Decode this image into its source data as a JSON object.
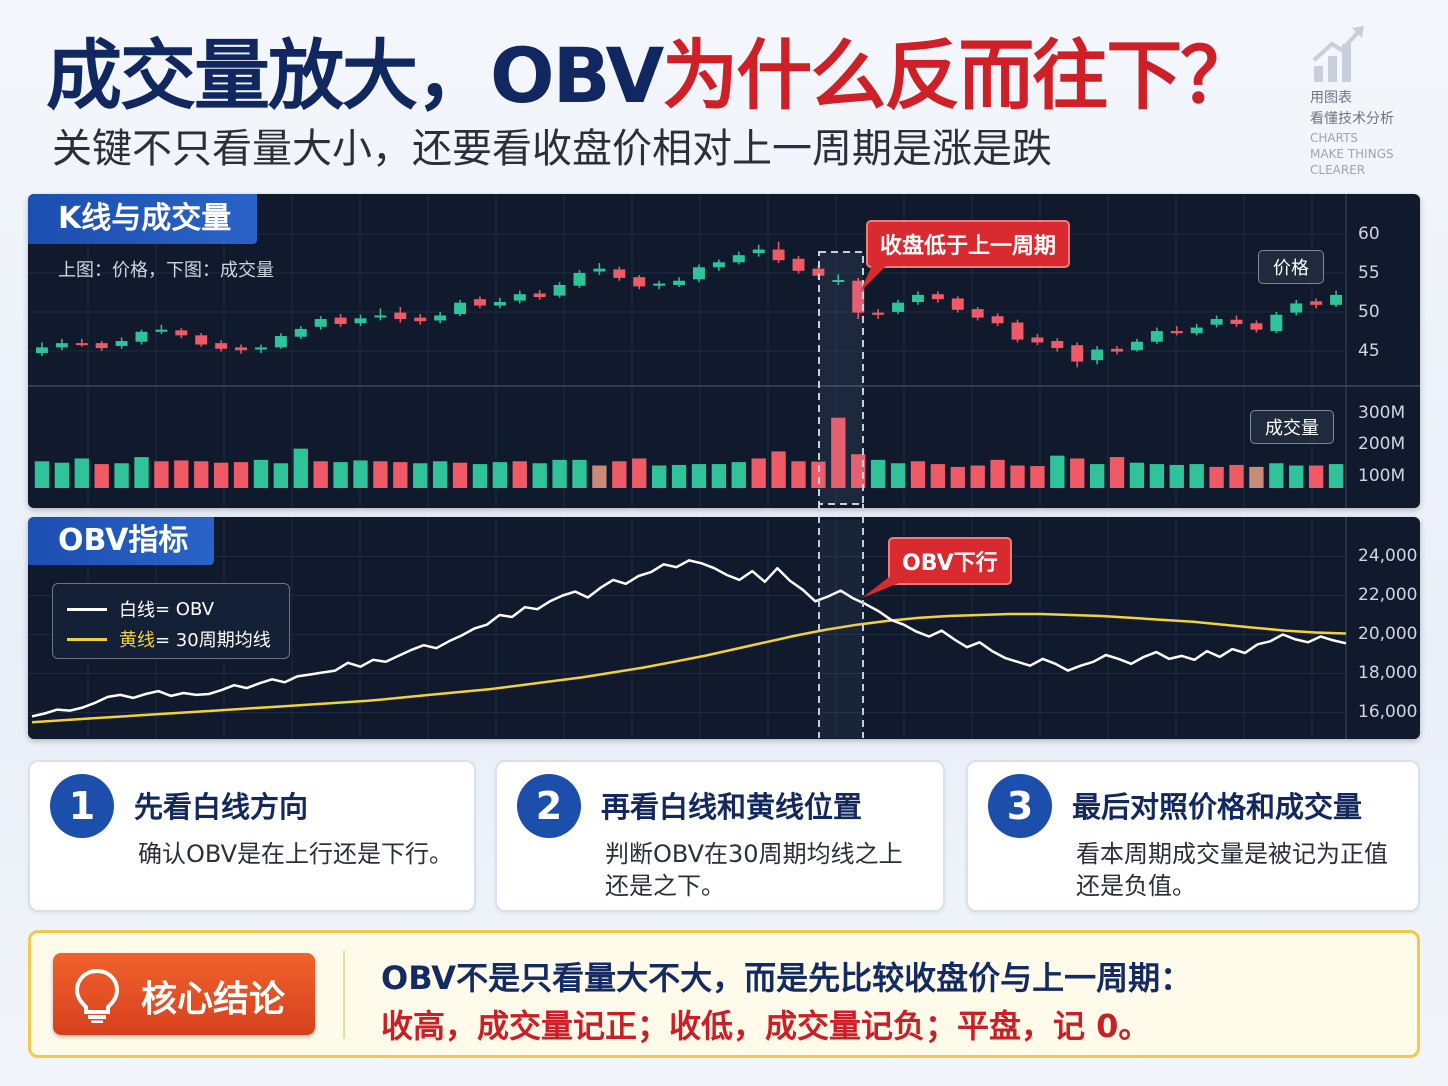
{
  "header": {
    "title_part1": "成交量放大，OBV",
    "title_part2": "为什么反而往下？",
    "subtitle": "关键不只看量大小，还要看收盘价相对上一周期是涨是跌"
  },
  "brand": {
    "line1": "用图表",
    "line2": "看懂技术分析",
    "line3": "CHARTS",
    "line4": "MAKE THINGS",
    "line5": "CLEARER",
    "icon": "bar-chart-arrow-icon"
  },
  "colors": {
    "navy": "#10275f",
    "red": "#cf1f27",
    "panel_bg": "#101a2c",
    "up": "#2fc39a",
    "down": "#ef5a66",
    "neutral": "#c98a7a",
    "obv_line": "#ffffff",
    "ma_line": "#f2d23a"
  },
  "kline_panel": {
    "tag": "K线与成交量",
    "note": "上图：价格，下图：成交量",
    "price_chip": "价格",
    "volume_chip": "成交量",
    "callout": "收盘低于上一周期"
  },
  "obv_panel": {
    "tag": "OBV指标",
    "callout": "OBV下行",
    "legend": [
      {
        "swatch": "白线",
        "text": " = OBV"
      },
      {
        "swatch": "黄线",
        "text": " = 30周期均线"
      }
    ]
  },
  "chart_data": [
    {
      "type": "candlestick",
      "title": "K线与成交量",
      "ylim": [
        40,
        62
      ],
      "y_ticks": [
        "60",
        "55",
        "50",
        "45"
      ],
      "y_tick_values": [
        60,
        55,
        50,
        45
      ],
      "candles": [
        [
          43.8,
          44.6,
          45.3,
          43.4
        ],
        [
          44.6,
          45.2,
          45.8,
          44.2
        ],
        [
          45.2,
          45.0,
          45.8,
          44.7
        ],
        [
          45.2,
          44.5,
          45.5,
          44.1
        ],
        [
          44.8,
          45.5,
          46.0,
          44.4
        ],
        [
          45.4,
          46.8,
          47.1,
          45.0
        ],
        [
          46.8,
          47.1,
          47.8,
          46.5
        ],
        [
          47.0,
          46.3,
          47.3,
          45.9
        ],
        [
          46.3,
          45.0,
          46.6,
          44.7
        ],
        [
          45.2,
          44.4,
          45.6,
          44.0
        ],
        [
          44.6,
          44.2,
          45.0,
          43.7
        ],
        [
          44.3,
          44.6,
          45.0,
          43.8
        ],
        [
          44.6,
          46.2,
          46.6,
          44.4
        ],
        [
          46.1,
          47.2,
          47.6,
          45.8
        ],
        [
          47.5,
          48.6,
          49.0,
          47.1
        ],
        [
          48.8,
          47.9,
          49.3,
          47.5
        ],
        [
          48.0,
          48.7,
          49.2,
          47.6
        ],
        [
          48.9,
          49.1,
          50.1,
          48.4
        ],
        [
          49.5,
          48.6,
          50.3,
          48.1
        ],
        [
          48.8,
          48.3,
          49.3,
          47.8
        ],
        [
          48.4,
          49.1,
          49.6,
          48.0
        ],
        [
          49.3,
          50.9,
          51.3,
          49.0
        ],
        [
          51.4,
          50.5,
          51.8,
          50.1
        ],
        [
          50.5,
          51.0,
          51.6,
          50.1
        ],
        [
          51.2,
          52.1,
          52.6,
          50.8
        ],
        [
          52.2,
          51.7,
          52.7,
          51.3
        ],
        [
          51.9,
          53.4,
          53.8,
          51.6
        ],
        [
          53.3,
          55.1,
          55.5,
          53.0
        ],
        [
          55.3,
          55.7,
          56.5,
          54.8
        ],
        [
          55.6,
          54.4,
          56.0,
          54.0
        ],
        [
          54.5,
          53.2,
          54.8,
          52.8
        ],
        [
          53.3,
          53.6,
          54.0,
          52.8
        ],
        [
          53.4,
          54.0,
          54.5,
          53.1
        ],
        [
          54.2,
          55.9,
          56.3,
          53.8
        ],
        [
          55.9,
          56.6,
          57.0,
          55.4
        ],
        [
          56.6,
          57.6,
          58.1,
          56.3
        ],
        [
          57.9,
          58.4,
          59.1,
          57.4
        ],
        [
          58.4,
          56.9,
          59.5,
          56.5
        ],
        [
          57.1,
          55.4,
          57.5,
          55.0
        ],
        [
          55.7,
          54.7,
          56.2,
          54.2
        ],
        [
          54.1,
          54.1,
          54.9,
          53.4
        ],
        [
          54.0,
          49.5,
          54.4,
          48.6
        ],
        [
          49.5,
          49.2,
          50.0,
          48.6
        ],
        [
          49.6,
          50.9,
          51.3,
          49.3
        ],
        [
          51.0,
          52.0,
          52.5,
          50.6
        ],
        [
          52.1,
          51.4,
          52.5,
          50.9
        ],
        [
          51.5,
          49.9,
          51.8,
          49.5
        ],
        [
          50.0,
          48.8,
          50.3,
          48.4
        ],
        [
          49.0,
          48.0,
          49.4,
          47.6
        ],
        [
          48.1,
          45.7,
          48.5,
          45.3
        ],
        [
          46.0,
          45.3,
          46.5,
          44.9
        ],
        [
          45.5,
          44.5,
          45.9,
          44.0
        ],
        [
          44.9,
          42.6,
          45.3,
          41.8
        ],
        [
          42.8,
          44.3,
          44.8,
          42.2
        ],
        [
          44.4,
          44.0,
          44.8,
          43.6
        ],
        [
          44.2,
          45.4,
          45.8,
          44.0
        ],
        [
          45.4,
          46.9,
          47.4,
          45.1
        ],
        [
          46.9,
          46.6,
          47.6,
          46.3
        ],
        [
          46.6,
          47.4,
          47.9,
          46.3
        ],
        [
          47.8,
          48.6,
          49.1,
          47.4
        ],
        [
          48.5,
          47.9,
          49.1,
          47.5
        ],
        [
          48.0,
          47.1,
          48.4,
          46.7
        ],
        [
          46.9,
          49.2,
          49.6,
          46.6
        ],
        [
          49.5,
          50.8,
          51.3,
          49.1
        ],
        [
          51.1,
          50.6,
          51.5,
          50.1
        ],
        [
          50.6,
          52.0,
          52.6,
          50.3
        ]
      ]
    },
    {
      "type": "bar",
      "title": "成交量",
      "ylim": [
        0,
        320
      ],
      "y_ticks": [
        "300M",
        "200M",
        "100M"
      ],
      "y_tick_values": [
        300,
        200,
        100
      ],
      "values": [
        95,
        90,
        105,
        85,
        88,
        110,
        95,
        98,
        95,
        90,
        92,
        100,
        88,
        140,
        95,
        92,
        98,
        95,
        92,
        88,
        95,
        90,
        85,
        92,
        95,
        88,
        100,
        100,
        80,
        95,
        105,
        80,
        82,
        85,
        85,
        92,
        105,
        130,
        95,
        94,
        250,
        120,
        100,
        88,
        95,
        85,
        75,
        80,
        100,
        80,
        78,
        115,
        105,
        85,
        110,
        90,
        85,
        82,
        85,
        75,
        82,
        75,
        88,
        80,
        80,
        85
      ],
      "direction": [
        "up",
        "up",
        "up",
        "down",
        "up",
        "up",
        "down",
        "down",
        "down",
        "down",
        "down",
        "up",
        "up",
        "up",
        "down",
        "up",
        "up",
        "down",
        "down",
        "up",
        "up",
        "down",
        "up",
        "up",
        "down",
        "up",
        "up",
        "up",
        "neutral",
        "down",
        "down",
        "up",
        "up",
        "up",
        "up",
        "up",
        "down",
        "down",
        "down",
        "down",
        "down",
        "down",
        "up",
        "up",
        "down",
        "down",
        "down",
        "down",
        "down",
        "down",
        "down",
        "up",
        "down",
        "up",
        "down",
        "up",
        "up",
        "up",
        "up",
        "down",
        "down",
        "neutral",
        "up",
        "up",
        "down",
        "up"
      ]
    },
    {
      "type": "line",
      "title": "OBV指标",
      "ylim": [
        15000,
        25000
      ],
      "y_ticks": [
        "24,000",
        "22,000",
        "20,000",
        "18,000",
        "16,000"
      ],
      "y_tick_values": [
        24000,
        22000,
        20000,
        18000,
        16000
      ],
      "series": [
        {
          "name": "白线 = OBV",
          "values": [
            15800,
            15950,
            16150,
            16100,
            16250,
            16500,
            16800,
            16900,
            16750,
            16950,
            17100,
            16850,
            17000,
            16900,
            16950,
            17150,
            17400,
            17250,
            17500,
            17700,
            17550,
            17850,
            17950,
            18050,
            18150,
            18550,
            18350,
            18700,
            18600,
            18900,
            19200,
            19450,
            19300,
            19650,
            19950,
            20300,
            20500,
            21000,
            20900,
            21400,
            21300,
            21700,
            22000,
            22200,
            21900,
            22400,
            22800,
            22600,
            23000,
            23200,
            23600,
            23450,
            23800,
            23650,
            23400,
            23050,
            22800,
            23250,
            22700,
            23400,
            22750,
            22300,
            21700,
            21950,
            22250,
            21850,
            21550,
            21200,
            20750,
            20500,
            20150,
            19900,
            20200,
            19750,
            19350,
            19600,
            19150,
            18800,
            18600,
            18400,
            18750,
            18500,
            18150,
            18400,
            18600,
            18950,
            18750,
            18500,
            18850,
            19100,
            18750,
            18900,
            18700,
            19150,
            18850,
            19250,
            19050,
            19500,
            19650,
            20000,
            19750,
            19600,
            19900,
            19700,
            19550
          ]
        },
        {
          "name": "黄线 = 30周期均线",
          "values": [
            15500,
            15600,
            15700,
            15800,
            15900,
            16000,
            16100,
            16200,
            16300,
            16400,
            16500,
            16600,
            16750,
            16900,
            17050,
            17200,
            17400,
            17600,
            17800,
            18050,
            18300,
            18600,
            18900,
            19250,
            19600,
            19950,
            20250,
            20500,
            20700,
            20850,
            20950,
            21000,
            21050,
            21050,
            21000,
            20950,
            20850,
            20750,
            20650,
            20500,
            20350,
            20200,
            20100,
            20050
          ]
        }
      ]
    }
  ],
  "steps": [
    {
      "num": "1",
      "title": "先看白线方向",
      "body": "确认OBV是在上行还是下行。"
    },
    {
      "num": "2",
      "title": "再看白线和黄线位置",
      "body": "判断OBV在30周期均线之上\n还是之下。"
    },
    {
      "num": "3",
      "title": "最后对照价格和成交量",
      "body": "看本周期成交量是被记为正值\n还是负值。"
    }
  ],
  "conclusion": {
    "badge": "核心结论",
    "line1": "OBV不是只看量大不大，而是先比较收盘价与上一周期：",
    "line2": "收高，成交量记正；收低，成交量记负；平盘，记 0。"
  }
}
